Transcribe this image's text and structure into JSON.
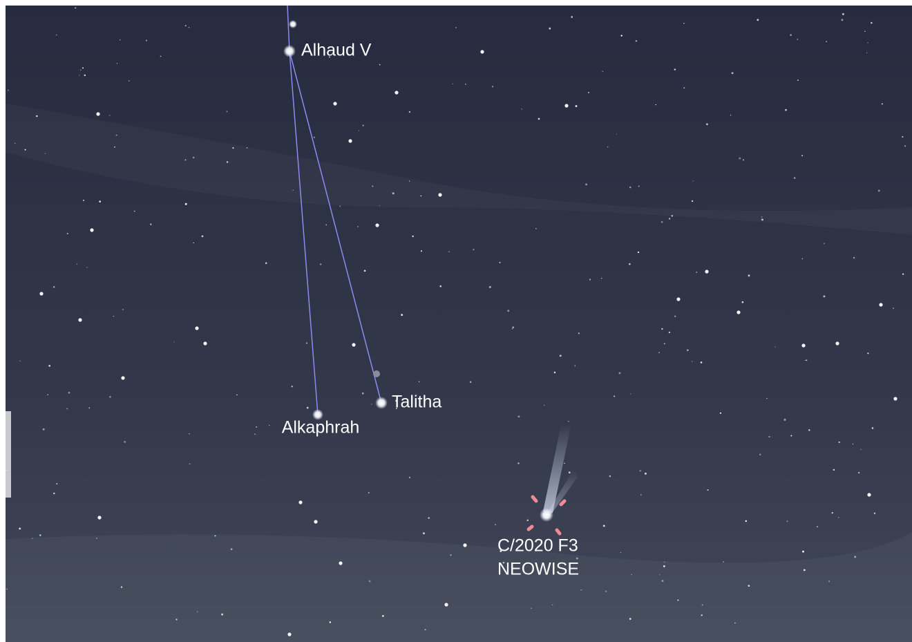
{
  "labels": {
    "alhaud": "Alhaud V",
    "talitha": "Talitha",
    "alkaphrah": "Alkaphrah",
    "comet": [
      "C/2020 F3",
      "NEOWISE"
    ]
  }
}
